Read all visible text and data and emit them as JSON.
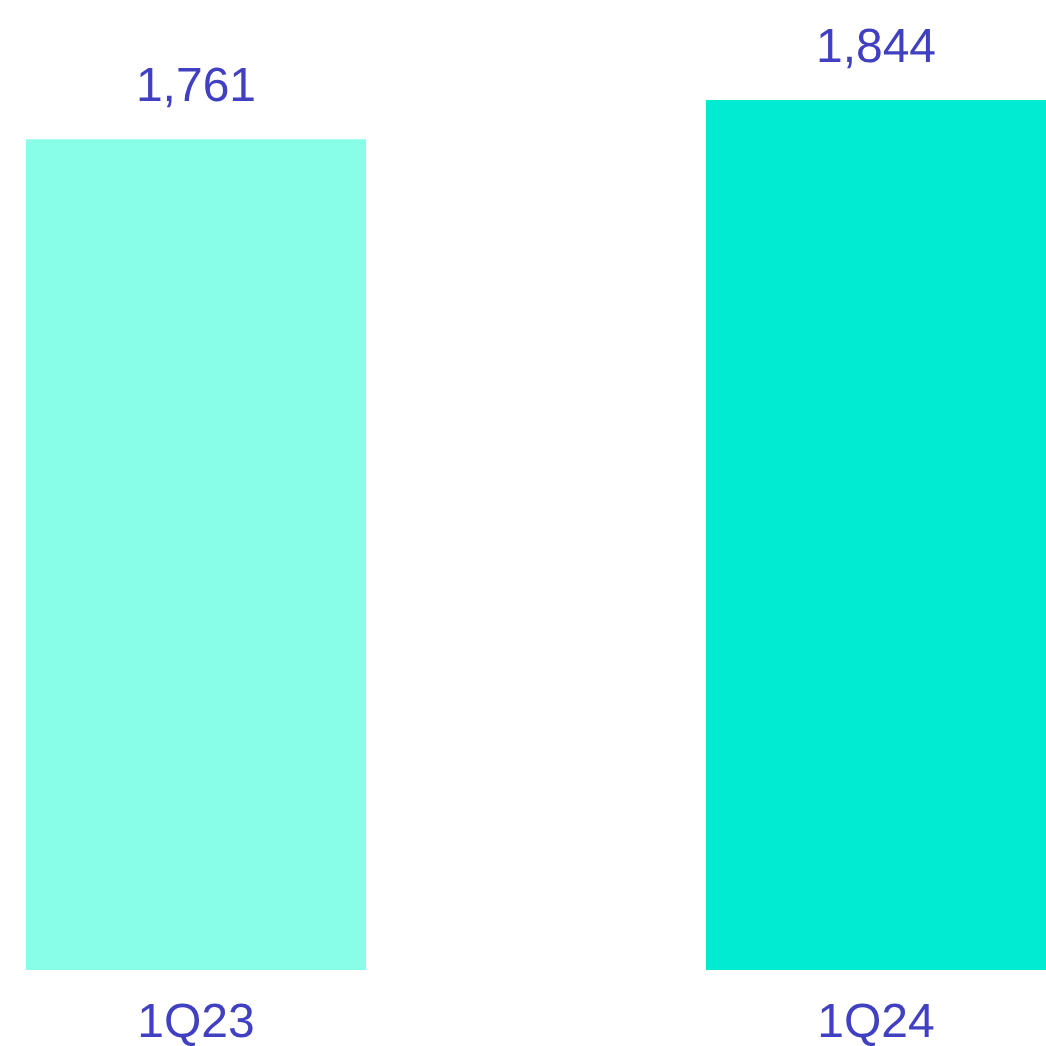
{
  "chart_data": {
    "type": "bar",
    "categories": [
      "1Q23",
      "1Q24"
    ],
    "values": [
      1761,
      1844
    ],
    "colors": [
      "#88fde8",
      "#00ebd2"
    ],
    "value_labels": [
      "1,761",
      "1,844"
    ]
  }
}
